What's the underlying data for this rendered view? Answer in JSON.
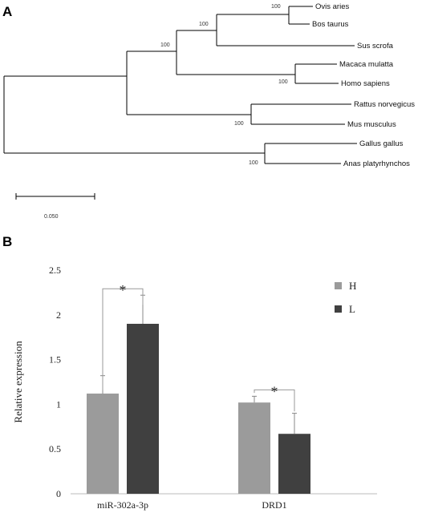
{
  "panels": {
    "a": "A",
    "b": "B"
  },
  "tree": {
    "taxa": [
      "Ovis aries",
      "Bos taurus",
      "Sus scrofa",
      "Macaca mulatta",
      "Homo sapiens",
      "Rattus norvegicus",
      "Mus musculus",
      "Gallus gallus",
      "Anas platyrhynchos"
    ],
    "bootstrap": [
      "100",
      "100",
      "100",
      "100",
      "100",
      "100"
    ],
    "scale_label": "0.050"
  },
  "chart_data": {
    "type": "bar",
    "categories": [
      "miR-302a-3p",
      "DRD1"
    ],
    "series": [
      {
        "name": "H",
        "values": [
          1.12,
          1.02
        ],
        "error": [
          0.2,
          0.07
        ],
        "color": "#9b9b9b"
      },
      {
        "name": "L",
        "values": [
          1.9,
          0.67
        ],
        "error": [
          0.32,
          0.23
        ],
        "color": "#404040"
      }
    ],
    "ylabel": "Relative expression",
    "ylim": [
      0,
      2.5
    ],
    "yticks": [
      "0",
      "0.5",
      "1",
      "1.5",
      "2",
      "2.5"
    ],
    "legend_position": "top-right",
    "significance": [
      "*",
      "*"
    ]
  }
}
